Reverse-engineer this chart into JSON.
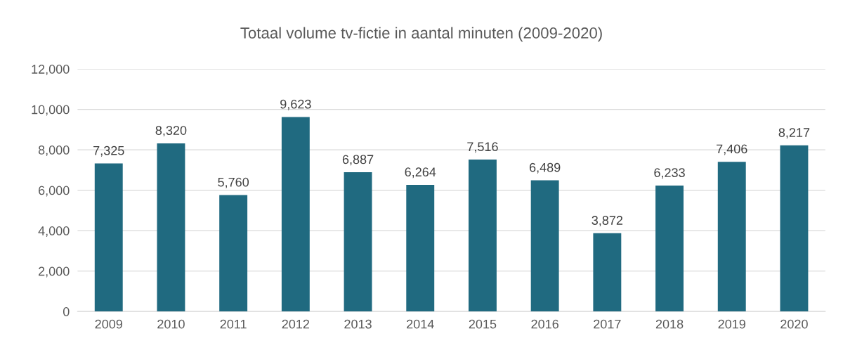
{
  "chart_data": {
    "type": "bar",
    "title": "Totaal volume tv-fictie in aantal minuten (2009-2020)",
    "categories": [
      "2009",
      "2010",
      "2011",
      "2012",
      "2013",
      "2014",
      "2015",
      "2016",
      "2017",
      "2018",
      "2019",
      "2020"
    ],
    "values": [
      7325,
      8320,
      5760,
      9623,
      6887,
      6264,
      7516,
      6489,
      3872,
      6233,
      7406,
      8217
    ],
    "value_labels": [
      "7,325",
      "8,320",
      "5,760",
      "9,623",
      "6,887",
      "6,264",
      "7,516",
      "6,489",
      "3,872",
      "6,233",
      "7,406",
      "8,217"
    ],
    "color": "#206a80",
    "ylim": [
      0,
      12000
    ],
    "yticks": [
      {
        "value": 0,
        "label": "0"
      },
      {
        "value": 2000,
        "label": "2,000"
      },
      {
        "value": 4000,
        "label": "4,000"
      },
      {
        "value": 6000,
        "label": "6,000"
      },
      {
        "value": 8000,
        "label": "8,000"
      },
      {
        "value": 10000,
        "label": "10,000"
      },
      {
        "value": 12000,
        "label": "12,000"
      }
    ],
    "grid": "y",
    "legend": false
  }
}
